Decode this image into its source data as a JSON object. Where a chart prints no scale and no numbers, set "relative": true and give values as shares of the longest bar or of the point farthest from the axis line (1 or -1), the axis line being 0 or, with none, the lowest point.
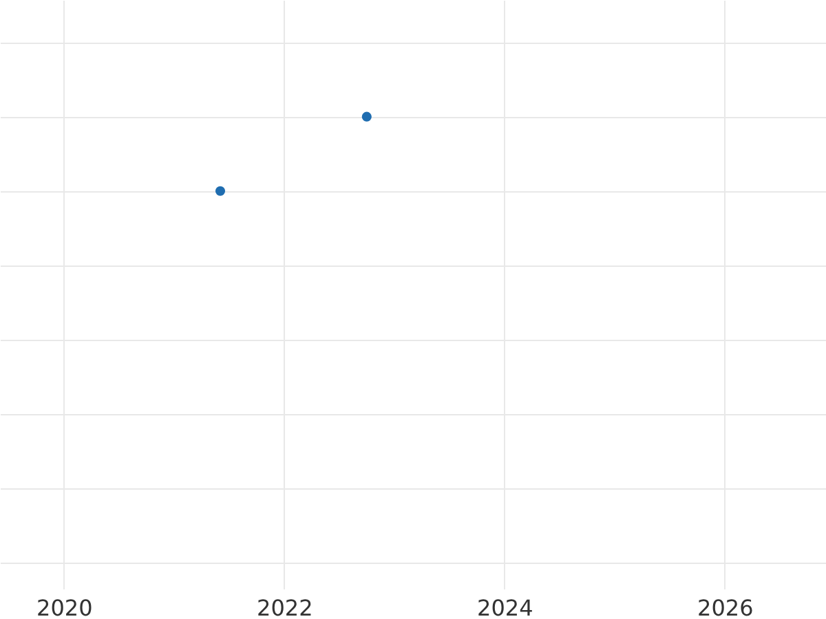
{
  "chart_data": {
    "type": "scatter",
    "relative": true,
    "x": [
      2021.42,
      2022.75
    ],
    "series": [
      {
        "color": "#1f6db0",
        "values": [
          0,
          1
        ]
      }
    ],
    "xlim": [
      2019.42,
      2026.92
    ],
    "xticks": [
      2020,
      2022,
      2024,
      2026
    ],
    "grid": true,
    "marker": "circle",
    "tick_labels": "x"
  }
}
